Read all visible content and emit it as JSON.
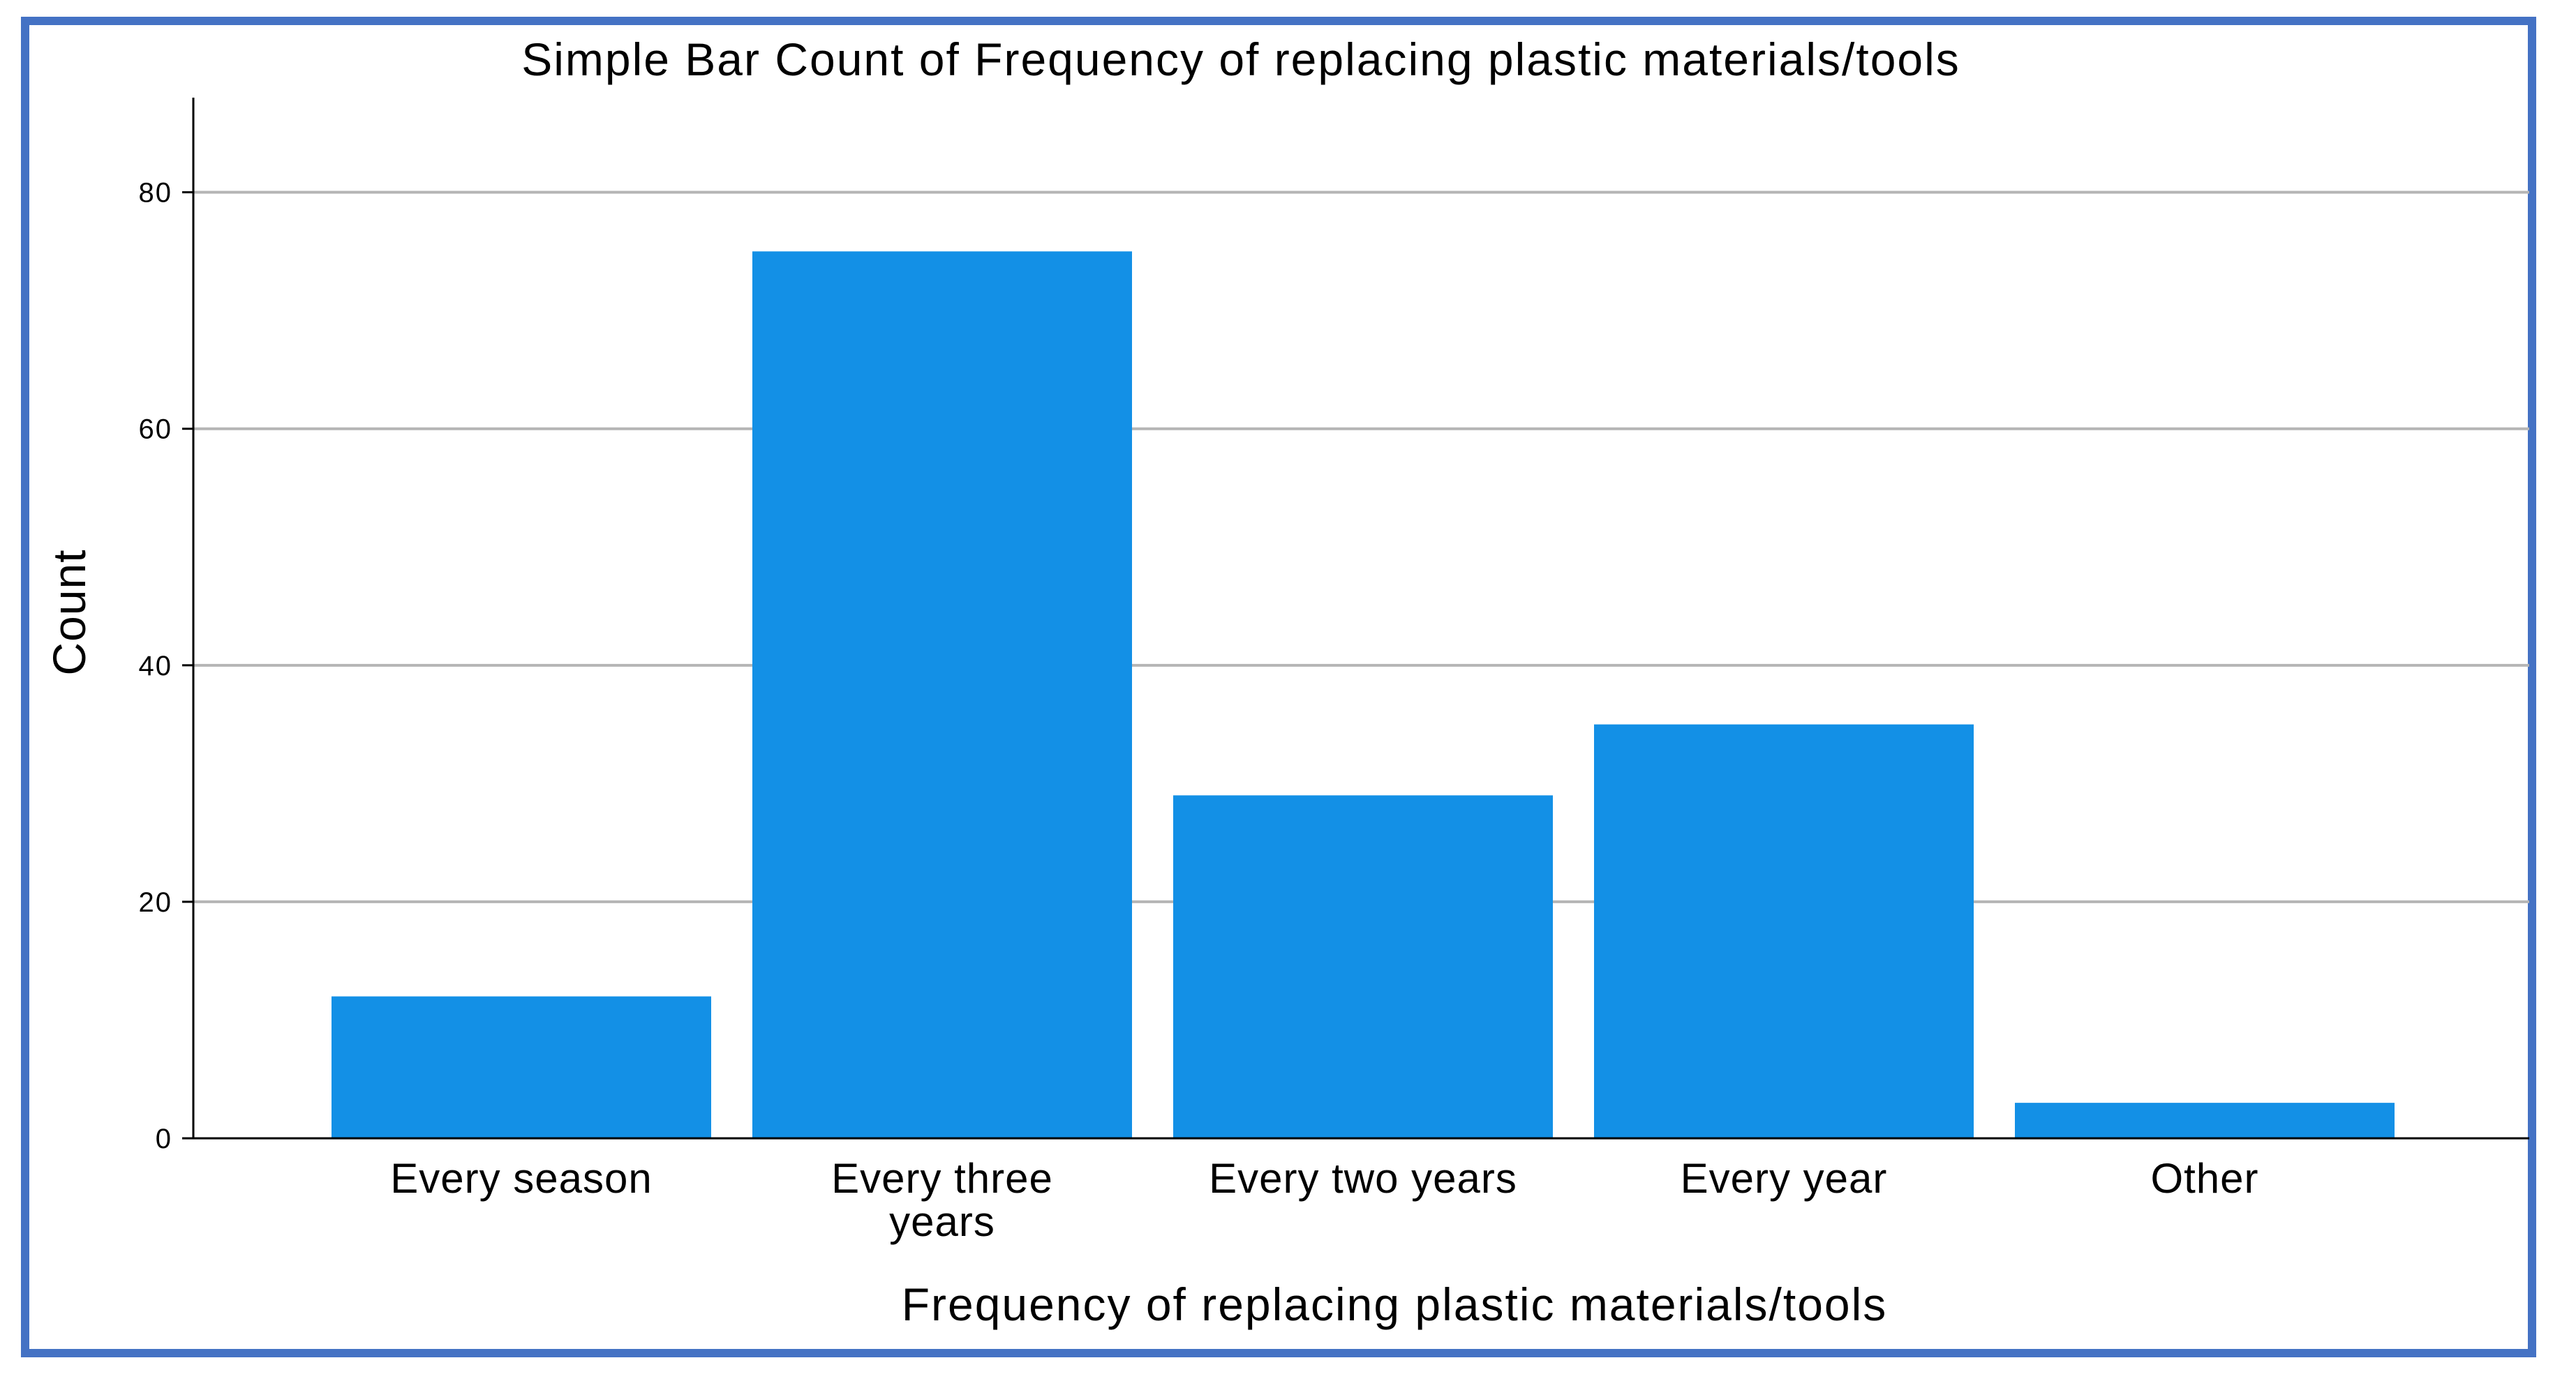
{
  "chart_data": {
    "type": "bar",
    "title": "Simple Bar Count of Frequency of replacing plastic materials/tools",
    "xlabel": "Frequency of replacing plastic materials/tools",
    "ylabel": "Count",
    "categories": [
      "Every season",
      "Every three years",
      "Every two years",
      "Every year",
      "Other"
    ],
    "category_label_lines": [
      [
        "Every season"
      ],
      [
        "Every three",
        "years"
      ],
      [
        "Every two years"
      ],
      [
        "Every year"
      ],
      [
        "Other"
      ]
    ],
    "values": [
      12,
      75,
      29,
      35,
      3
    ],
    "ylim": [
      0,
      88
    ],
    "yticks": [
      0,
      20,
      40,
      60,
      80
    ],
    "grid": true,
    "colors": {
      "bar": "#1390e6",
      "grid": "#b5b5b5",
      "axis": "#000000",
      "frame": "#4472c4"
    }
  }
}
